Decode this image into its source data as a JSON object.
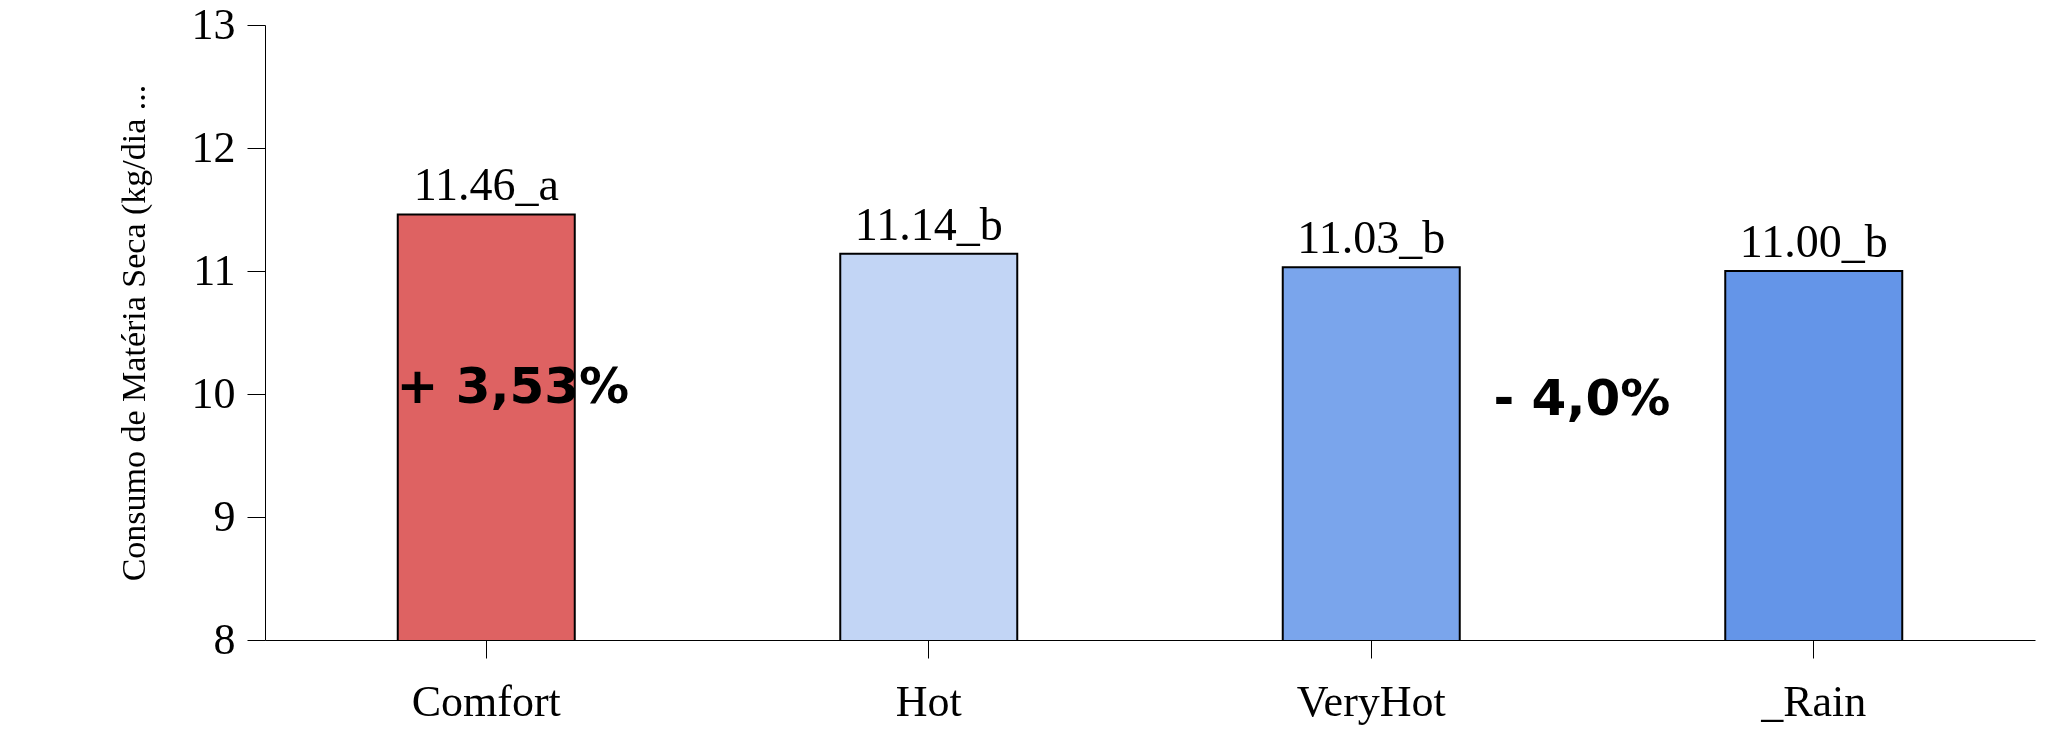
{
  "chart_data": {
    "type": "bar",
    "ylabel": "Consumo de Matéria Seca (kg/dia ...",
    "categories": [
      "Comfort",
      "Hot",
      "VeryHot",
      "_Rain"
    ],
    "values": [
      11.46,
      11.14,
      11.03,
      11.0
    ],
    "colors": [
      "#de6262",
      "#c2d5f5",
      "#7aa5ec",
      "#6495e8"
    ],
    "value_labels": [
      "11.46_a",
      "11.14_b",
      "11.03_b",
      "11.00_b"
    ],
    "annotations": [
      "+ 3,53%",
      "- 4,0%"
    ],
    "ylim": [
      8,
      13
    ],
    "yticks": [
      8,
      9,
      10,
      11,
      12,
      13
    ],
    "grid": false
  }
}
